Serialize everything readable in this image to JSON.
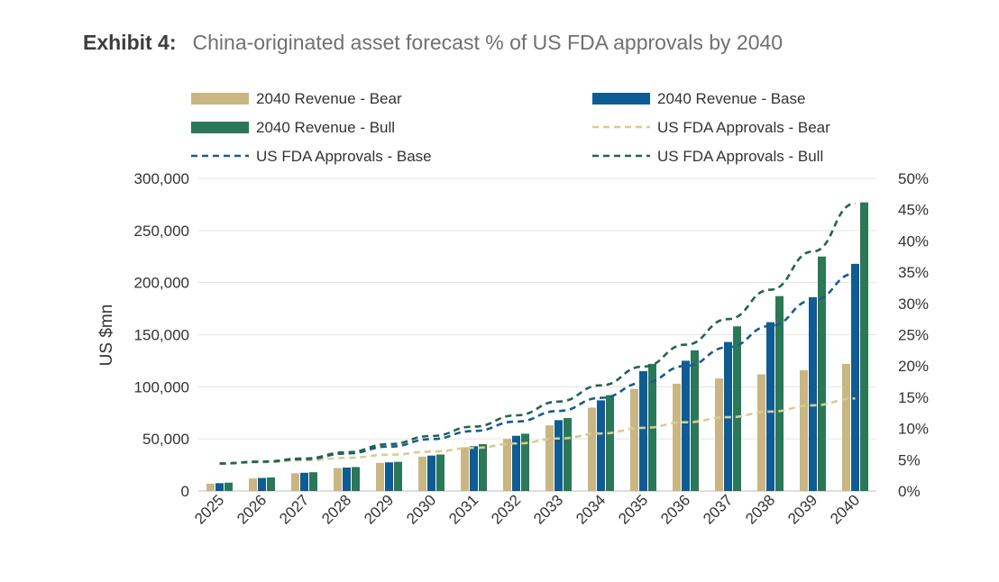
{
  "header": {
    "exhibit_label": "Exhibit 4:",
    "title": "China-originated asset forecast % of US FDA approvals by 2040"
  },
  "chart_data": {
    "type": "bar",
    "categories": [
      "2025",
      "2026",
      "2027",
      "2028",
      "2029",
      "2030",
      "2031",
      "2032",
      "2033",
      "2034",
      "2035",
      "2036",
      "2037",
      "2038",
      "2039",
      "2040"
    ],
    "bar_series": [
      {
        "name": "2040 Revenue - Bear",
        "color": "#c9b683",
        "values": [
          7000,
          12000,
          17000,
          22000,
          27000,
          33000,
          42000,
          50000,
          63000,
          80000,
          98000,
          103000,
          108000,
          112000,
          116000,
          122000
        ]
      },
      {
        "name": "2040 Revenue - Base",
        "color": "#0e5c93",
        "values": [
          7500,
          12500,
          17500,
          22500,
          27500,
          34000,
          43000,
          53000,
          68000,
          87000,
          115000,
          125000,
          143000,
          162000,
          186000,
          218000
        ]
      },
      {
        "name": "2040 Revenue - Bull",
        "color": "#2a7858",
        "values": [
          8000,
          13000,
          18000,
          23000,
          28000,
          35000,
          45000,
          55000,
          70000,
          92000,
          122000,
          135000,
          158000,
          187000,
          225000,
          277000
        ]
      }
    ],
    "line_series": [
      {
        "name": "US FDA Approvals - Bear",
        "color": "#d7cc94",
        "values": [
          4.4,
          4.6,
          4.9,
          5.3,
          5.8,
          6.3,
          6.9,
          7.6,
          8.4,
          9.2,
          10.1,
          11.0,
          11.8,
          12.7,
          13.7,
          14.8
        ]
      },
      {
        "name": "US FDA Approvals - Base",
        "color": "#175c8f",
        "values": [
          4.4,
          4.7,
          5.1,
          6.0,
          7.1,
          8.3,
          9.6,
          11.1,
          12.8,
          14.9,
          17.3,
          20.0,
          23.0,
          26.4,
          30.5,
          34.8
        ]
      },
      {
        "name": "US FDA Approvals - Bull",
        "color": "#22654c",
        "values": [
          4.4,
          4.7,
          5.2,
          6.2,
          7.5,
          8.8,
          10.3,
          12.1,
          14.3,
          16.9,
          19.9,
          23.4,
          27.5,
          32.2,
          38.3,
          46.0
        ]
      }
    ],
    "legend": [
      "2040 Revenue - Bear",
      "2040 Revenue - Base",
      "2040 Revenue - Bull",
      "US FDA Approvals - Bear",
      "US FDA Approvals - Base",
      "US FDA Approvals - Bull"
    ],
    "ylabel": "US $mn",
    "ylim": [
      0,
      300000
    ],
    "y_ticks": [
      "0",
      "50,000",
      "100,000",
      "150,000",
      "200,000",
      "250,000",
      "300,000"
    ],
    "y2lim": [
      0,
      50
    ],
    "y2_ticks": [
      "0%",
      "5%",
      "10%",
      "15%",
      "20%",
      "25%",
      "30%",
      "35%",
      "40%",
      "45%",
      "50%"
    ],
    "grid": "horizontal",
    "legend_position": "top"
  }
}
